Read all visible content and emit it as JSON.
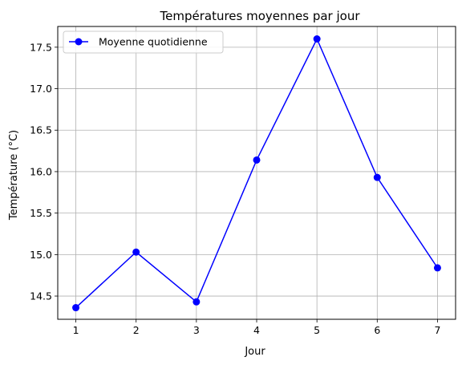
{
  "chart_data": {
    "type": "line",
    "title": "Températures moyennes par jour",
    "xlabel": "Jour",
    "ylabel": "Température (°C)",
    "x": [
      1,
      2,
      3,
      4,
      5,
      6,
      7
    ],
    "series": [
      {
        "name": "Moyenne quotidienne",
        "values": [
          14.36,
          15.03,
          14.43,
          16.14,
          17.6,
          15.93,
          14.84
        ],
        "color": "#0000ff",
        "marker": "circle"
      }
    ],
    "xlim": [
      0.7,
      7.3
    ],
    "ylim": [
      14.22,
      17.75
    ],
    "xticks": [
      "1",
      "2",
      "3",
      "4",
      "5",
      "6",
      "7"
    ],
    "yticks": [
      "14.5",
      "15.0",
      "15.5",
      "16.0",
      "16.5",
      "17.0",
      "17.5"
    ],
    "grid": true,
    "legend": "top-left",
    "colors": {
      "grid": "#b0b0b0",
      "axis": "#000000"
    }
  }
}
